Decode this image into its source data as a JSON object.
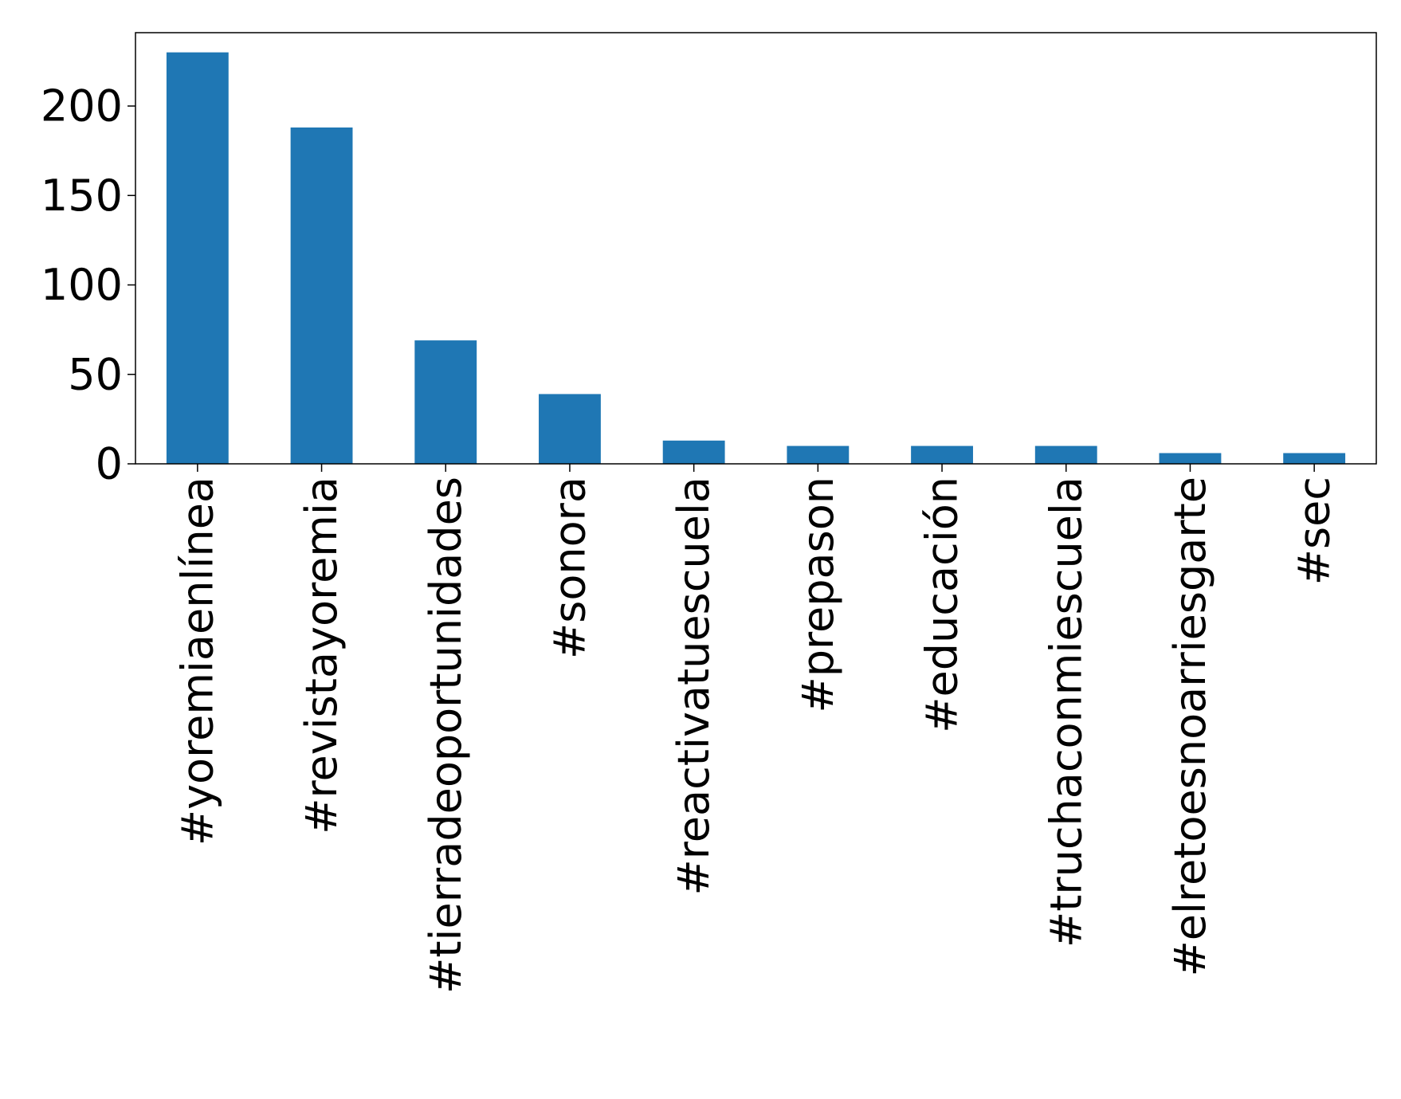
{
  "chart_data": {
    "type": "bar",
    "categories": [
      "#yoremiaenlínea",
      "#revistayoremia",
      "#tierradeoportunidades",
      "#sonora",
      "#reactivatuescuela",
      "#prepason",
      "#educación",
      "#truchaconmiescuela",
      "#elretoesnoarriesgarte",
      "#sec"
    ],
    "values": [
      230,
      188,
      69,
      39,
      13,
      10,
      10,
      10,
      6,
      6
    ],
    "ylim": [
      0,
      241
    ],
    "yticks": [
      0,
      50,
      100,
      150,
      200
    ],
    "title": "",
    "xlabel": "",
    "ylabel": "",
    "grid": false,
    "bar_color": "#1f77b4"
  }
}
